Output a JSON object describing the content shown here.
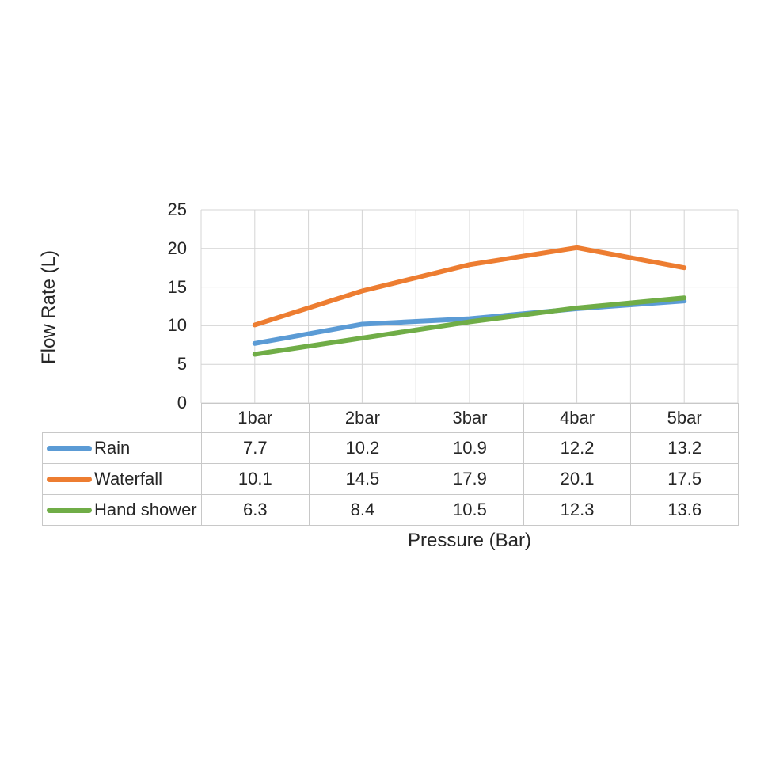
{
  "chart_data": {
    "type": "line",
    "title": "",
    "xlabel": "Pressure (Bar)",
    "ylabel": "Flow Rate (L)",
    "categories": [
      "1bar",
      "2bar",
      "3bar",
      "4bar",
      "5bar"
    ],
    "series": [
      {
        "name": "Rain",
        "color": "#5B9BD5",
        "values": [
          7.7,
          10.2,
          10.9,
          12.2,
          13.2
        ]
      },
      {
        "name": "Waterfall",
        "color": "#ED7D31",
        "values": [
          10.1,
          14.5,
          17.9,
          20.1,
          17.5
        ]
      },
      {
        "name": "Hand shower",
        "color": "#70AD47",
        "values": [
          6.3,
          8.4,
          10.5,
          12.3,
          13.6
        ]
      }
    ],
    "ylim": [
      0,
      25
    ],
    "yticks": [
      0,
      5,
      10,
      15,
      20,
      25
    ],
    "grid": true,
    "legend_position": "data-table-left",
    "gridline_color": "#D4D4D4",
    "table_border_color": "#C8C8C8",
    "text_color": "#262626",
    "background_color": "#FFFFFF"
  }
}
